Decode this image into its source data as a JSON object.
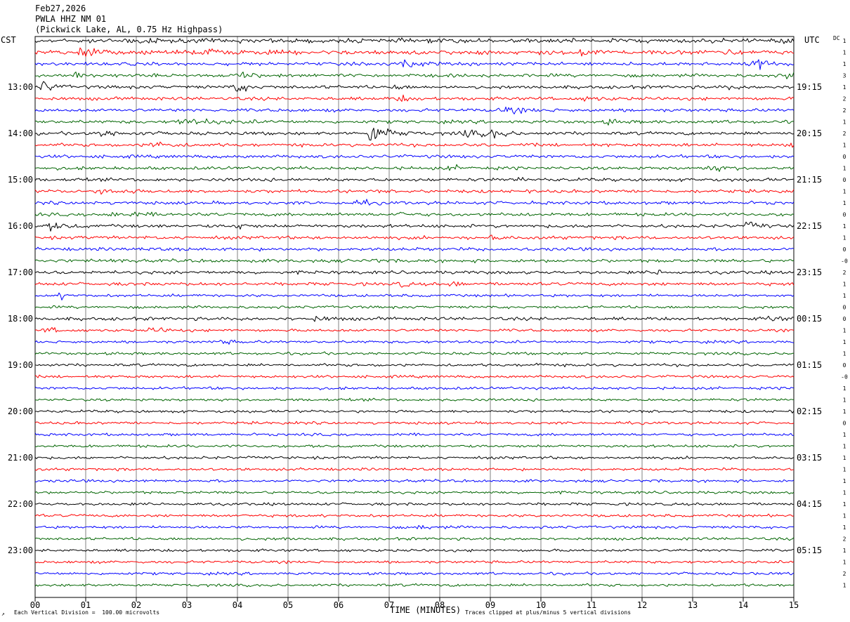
{
  "header": {
    "date": "Feb27,2026",
    "station": "PWLA HHZ NM 01",
    "location": "(Pickwick Lake, AL, 0.75 Hz Highpass)"
  },
  "labels": {
    "left_tz": "CST",
    "right_tz": "UTC",
    "dc_label": "DC",
    "xlabel": "TIME (MINUTES)",
    "scale_note": "Each Vertical Division =  100.00 microvolts",
    "clip_note": "Traces clipped at plus/minus 5 vertical divisions"
  },
  "colors": {
    "trace_cycle": [
      "#000000",
      "#ff0000",
      "#0000ff",
      "#006400"
    ],
    "grid": "#808080",
    "frame": "#000000"
  },
  "chart_data": {
    "type": "line",
    "title": "PWLA HHZ NM 01",
    "xlabel": "TIME (MINUTES)",
    "x_ticks": [
      "00",
      "01",
      "02",
      "03",
      "04",
      "05",
      "06",
      "07",
      "08",
      "09",
      "10",
      "11",
      "12",
      "13",
      "14",
      "15"
    ],
    "xlim": [
      0,
      15
    ],
    "row_count": 48,
    "left_hour_labels": [
      "13:00",
      "14:00",
      "15:00",
      "16:00",
      "17:00",
      "18:00",
      "19:00",
      "20:00",
      "21:00",
      "22:00",
      "23:00"
    ],
    "right_hour_labels": [
      "19:15",
      "20:15",
      "21:15",
      "22:15",
      "23:15",
      "00:15",
      "01:15",
      "02:15",
      "03:15",
      "04:15",
      "05:15"
    ],
    "hour_label_first_row": 4,
    "hour_label_every_rows": 4,
    "dc_offsets": [
      "1",
      "1",
      "1",
      "3",
      "1",
      "2",
      "2",
      "1",
      "2",
      "1",
      "0",
      "1",
      "0",
      "1",
      "1",
      "0",
      "1",
      "1",
      "0",
      "-0",
      "2",
      "1",
      "1",
      "0",
      "0",
      "1",
      "1",
      "1",
      "0",
      "-0",
      "1",
      "1",
      "1",
      "0",
      "1",
      "1",
      "1",
      "1",
      "1",
      "1",
      "1",
      "1",
      "1",
      "2",
      "1",
      "1",
      "2",
      "1"
    ],
    "base_noise": [
      4,
      4,
      3,
      3,
      3,
      3,
      3,
      3,
      3,
      3,
      3,
      3,
      3,
      3,
      3,
      3,
      3,
      3,
      3,
      3,
      3,
      3,
      2.5,
      2.5,
      3,
      2.5,
      2.5,
      2.5,
      2.5,
      2.5,
      2.5,
      2.5,
      2.5,
      2.5,
      2.5,
      2.5,
      2.5,
      2.5,
      2.5,
      2.5,
      2.5,
      2.5,
      2.5,
      2.5,
      2.5,
      2.5,
      2.5,
      2.5
    ],
    "events": [
      {
        "row": 0,
        "minute": 1.8,
        "amplitude": 6,
        "duration": 0.5
      },
      {
        "row": 0,
        "minute": 14.8,
        "amplitude": 6,
        "duration": 0.2
      },
      {
        "row": 1,
        "minute": 0.9,
        "amplitude": 14,
        "duration": 0.3
      },
      {
        "row": 1,
        "minute": 3.3,
        "amplitude": 7,
        "duration": 0.5
      },
      {
        "row": 1,
        "minute": 10.8,
        "amplitude": 7,
        "duration": 0.3
      },
      {
        "row": 1,
        "minute": 13.5,
        "amplitude": 7,
        "duration": 0.3
      },
      {
        "row": 2,
        "minute": 7.3,
        "amplitude": 8,
        "duration": 0.5
      },
      {
        "row": 2,
        "minute": 14.2,
        "amplitude": 11,
        "duration": 0.5
      },
      {
        "row": 3,
        "minute": 0.8,
        "amplitude": 5,
        "duration": 0.4
      },
      {
        "row": 3,
        "minute": 4.1,
        "amplitude": 6,
        "duration": 0.3
      },
      {
        "row": 3,
        "minute": 14.9,
        "amplitude": 12,
        "duration": 0.2
      },
      {
        "row": 4,
        "minute": 0.15,
        "amplitude": 11,
        "duration": 0.3
      },
      {
        "row": 4,
        "minute": 3.95,
        "amplitude": 12,
        "duration": 0.3
      },
      {
        "row": 4,
        "minute": 7.1,
        "amplitude": 5,
        "duration": 0.2
      },
      {
        "row": 4,
        "minute": 13.7,
        "amplitude": 5,
        "duration": 0.2
      },
      {
        "row": 5,
        "minute": 7.2,
        "amplitude": 6,
        "duration": 0.3
      },
      {
        "row": 5,
        "minute": 10.9,
        "amplitude": 5,
        "duration": 0.3
      },
      {
        "row": 6,
        "minute": 9.2,
        "amplitude": 6,
        "duration": 0.6
      },
      {
        "row": 7,
        "minute": 2.8,
        "amplitude": 5,
        "duration": 1.2
      },
      {
        "row": 7,
        "minute": 11.3,
        "amplitude": 5,
        "duration": 0.3
      },
      {
        "row": 8,
        "minute": 1.2,
        "amplitude": 5,
        "duration": 0.8
      },
      {
        "row": 8,
        "minute": 6.6,
        "amplitude": 22,
        "duration": 0.5
      },
      {
        "row": 8,
        "minute": 8.4,
        "amplitude": 6,
        "duration": 0.8
      },
      {
        "row": 8,
        "minute": 9.0,
        "amplitude": 9,
        "duration": 0.3
      },
      {
        "row": 9,
        "minute": 2.3,
        "amplitude": 6,
        "duration": 0.6
      },
      {
        "row": 9,
        "minute": 14.8,
        "amplitude": 5,
        "duration": 0.3
      },
      {
        "row": 11,
        "minute": 8.2,
        "amplitude": 4,
        "duration": 0.4
      },
      {
        "row": 11,
        "minute": 13.3,
        "amplitude": 7,
        "duration": 0.4
      },
      {
        "row": 12,
        "minute": 9.6,
        "amplitude": 5,
        "duration": 0.2
      },
      {
        "row": 13,
        "minute": 1.3,
        "amplitude": 5,
        "duration": 0.7
      },
      {
        "row": 14,
        "minute": 6.4,
        "amplitude": 5,
        "duration": 0.3
      },
      {
        "row": 15,
        "minute": 1.5,
        "amplitude": 7,
        "duration": 0.6
      },
      {
        "row": 15,
        "minute": 7.2,
        "amplitude": 5,
        "duration": 0.2
      },
      {
        "row": 16,
        "minute": 0.3,
        "amplitude": 7,
        "duration": 0.4
      },
      {
        "row": 16,
        "minute": 4.0,
        "amplitude": 8,
        "duration": 0.2
      },
      {
        "row": 16,
        "minute": 14.1,
        "amplitude": 8,
        "duration": 0.3
      },
      {
        "row": 17,
        "minute": 9.0,
        "amplitude": 4,
        "duration": 0.3
      },
      {
        "row": 19,
        "minute": 1.4,
        "amplitude": 4,
        "duration": 0.3
      },
      {
        "row": 19,
        "minute": 6.6,
        "amplitude": 5,
        "duration": 0.2
      },
      {
        "row": 20,
        "minute": 12.3,
        "amplitude": 6,
        "duration": 0.1
      },
      {
        "row": 21,
        "minute": 7.2,
        "amplitude": 7,
        "duration": 0.2
      },
      {
        "row": 21,
        "minute": 8.2,
        "amplitude": 5,
        "duration": 0.3
      },
      {
        "row": 22,
        "minute": 0.5,
        "amplitude": 6,
        "duration": 0.2
      },
      {
        "row": 24,
        "minute": 5.5,
        "amplitude": 4,
        "duration": 0.5
      },
      {
        "row": 24,
        "minute": 14.5,
        "amplitude": 5,
        "duration": 0.4
      },
      {
        "row": 25,
        "minute": 0.2,
        "amplitude": 7,
        "duration": 0.3
      },
      {
        "row": 25,
        "minute": 2.3,
        "amplitude": 6,
        "duration": 0.4
      },
      {
        "row": 26,
        "minute": 3.7,
        "amplitude": 4,
        "duration": 0.3
      },
      {
        "row": 28,
        "minute": 9.95,
        "amplitude": 5,
        "duration": 0.1
      },
      {
        "row": 42,
        "minute": 7.6,
        "amplitude": 4,
        "duration": 0.4
      },
      {
        "row": 43,
        "minute": 4.9,
        "amplitude": 4,
        "duration": 0.1
      }
    ]
  }
}
